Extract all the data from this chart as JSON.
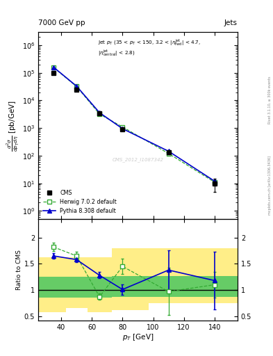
{
  "title_left": "7000 GeV pp",
  "title_right": "Jets",
  "watermark": "CMS_2012_I1087342",
  "xlim": [
    25,
    155
  ],
  "ylim_main": [
    0.5,
    3000000
  ],
  "ylim_ratio": [
    0.42,
    2.35
  ],
  "ratio_yticks": [
    0.5,
    1.0,
    1.5,
    2.0
  ],
  "cms_x": [
    35,
    50,
    65,
    80,
    110,
    140
  ],
  "cms_y": [
    100000,
    25000,
    3500,
    900,
    130,
    10
  ],
  "cms_yerr_lo": [
    6000,
    1500,
    200,
    60,
    20,
    5
  ],
  "cms_yerr_hi": [
    6000,
    1500,
    200,
    60,
    20,
    5
  ],
  "herwig_x": [
    35,
    50,
    65,
    80,
    110,
    140
  ],
  "herwig_y": [
    155000,
    32000,
    3200,
    1100,
    120,
    11
  ],
  "herwig_ratio": [
    1.82,
    1.65,
    0.87,
    1.45,
    0.97,
    1.1
  ],
  "herwig_ratio_err_lo": [
    0.08,
    0.08,
    0.06,
    0.15,
    0.45,
    0.25
  ],
  "herwig_ratio_err_hi": [
    0.08,
    0.08,
    0.06,
    0.15,
    0.45,
    0.25
  ],
  "pythia_x": [
    35,
    50,
    65,
    80,
    110,
    140
  ],
  "pythia_y": [
    160000,
    33000,
    3600,
    950,
    145,
    12
  ],
  "pythia_ratio": [
    1.65,
    1.58,
    1.28,
    1.01,
    1.38,
    1.18
  ],
  "pythia_ratio_err_lo": [
    0.05,
    0.05,
    0.06,
    0.1,
    0.38,
    0.55
  ],
  "pythia_ratio_err_hi": [
    0.05,
    0.05,
    0.06,
    0.1,
    0.38,
    0.55
  ],
  "band_x_edges": [
    25,
    43,
    57,
    73,
    97,
    120,
    155
  ],
  "band_yellow_lo": [
    0.58,
    0.65,
    0.58,
    0.62,
    0.75,
    0.75
  ],
  "band_yellow_hi": [
    1.62,
    1.62,
    1.62,
    1.8,
    1.8,
    1.8
  ],
  "band_green_lo": [
    0.85,
    0.85,
    0.85,
    0.87,
    0.87,
    0.87
  ],
  "band_green_hi": [
    1.25,
    1.25,
    1.25,
    1.27,
    1.27,
    1.27
  ],
  "cms_color": "#000000",
  "herwig_color": "#33aa33",
  "pythia_color": "#0000cc",
  "green_band_color": "#66cc66",
  "yellow_band_color": "#ffee88"
}
